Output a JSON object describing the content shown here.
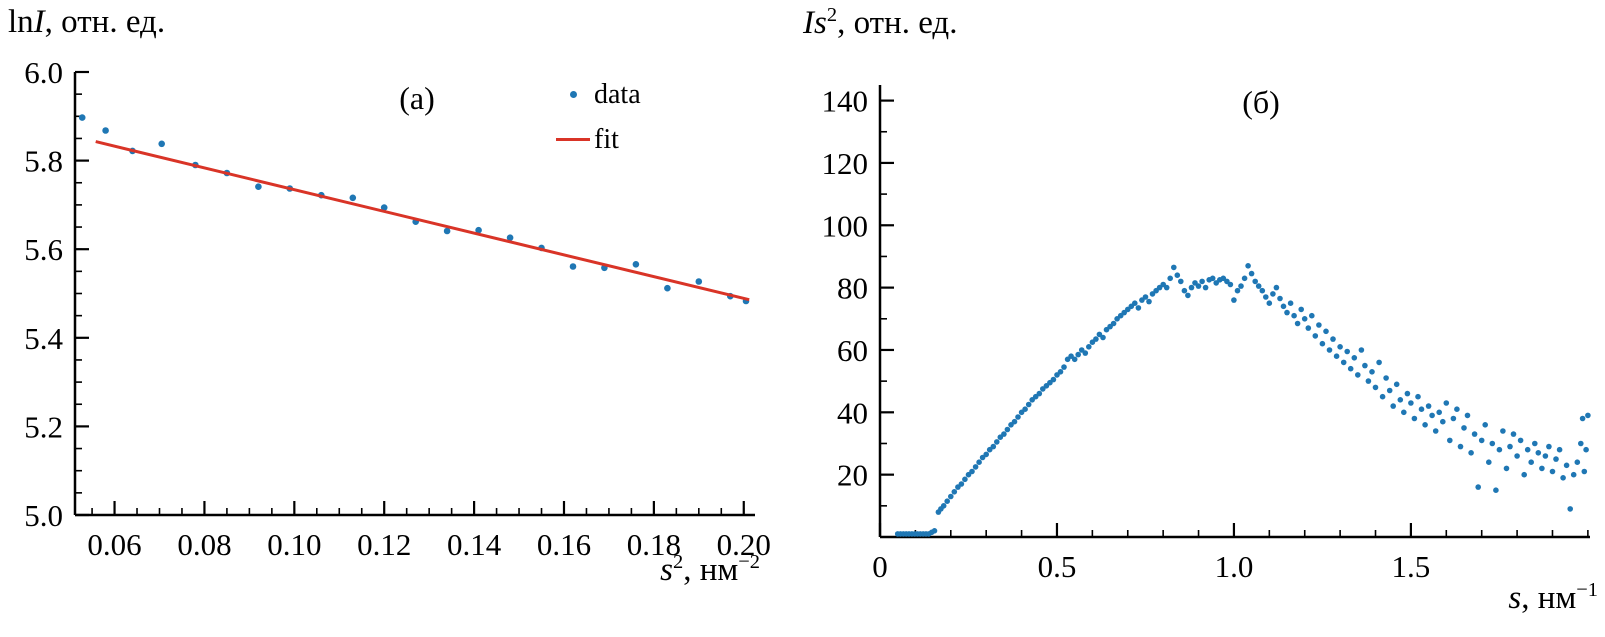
{
  "colors": {
    "data_point": "#1f77b4",
    "fit_line": "#d93427",
    "axis": "#000000"
  },
  "labels": {
    "left_y": {
      "roman": "ln",
      "var": "I",
      "rest": ", отн. ед."
    },
    "left_x": {
      "var": "s",
      "sup": "2",
      "mid": ", нм",
      "exp": "−2"
    },
    "right_y": {
      "var": "Is",
      "sup": "2",
      "rest": ", отн. ед."
    },
    "right_x": {
      "var": "s",
      "mid": ",  нм",
      "exp": "−1"
    }
  },
  "chart_data": [
    {
      "type": "scatter",
      "panel_label": "(а)",
      "ylabel": "lnI, отн. ед.",
      "xlabel": "s², нм−2",
      "xlim": [
        0.0512,
        0.2025
      ],
      "ylim": [
        5.0,
        6.0
      ],
      "xticks": [
        0.06,
        0.08,
        0.1,
        0.12,
        0.14,
        0.16,
        0.18,
        0.2
      ],
      "xtick_labels": [
        "0.06",
        "0.08",
        "0.10",
        "0.12",
        "0.14",
        "0.16",
        "0.18",
        "0.20"
      ],
      "x_minor_step": 0.005,
      "yticks": [
        5.0,
        5.2,
        5.4,
        5.6,
        5.8,
        6.0
      ],
      "ytick_labels": [
        "5.0",
        "5.2",
        "5.4",
        "5.6",
        "5.8",
        "6.0"
      ],
      "y_minor_step": 0.05,
      "grid": false,
      "legend": [
        "data",
        "fit"
      ],
      "legend_position": "upper right",
      "series": [
        {
          "name": "data",
          "type": "scatter",
          "points": [
            [
              0.0528,
              5.897
            ],
            [
              0.058,
              5.868
            ],
            [
              0.064,
              5.822
            ],
            [
              0.0705,
              5.838
            ],
            [
              0.078,
              5.79
            ],
            [
              0.085,
              5.772
            ],
            [
              0.092,
              5.741
            ],
            [
              0.099,
              5.737
            ],
            [
              0.106,
              5.722
            ],
            [
              0.113,
              5.716
            ],
            [
              0.12,
              5.694
            ],
            [
              0.127,
              5.662
            ],
            [
              0.134,
              5.641
            ],
            [
              0.141,
              5.643
            ],
            [
              0.148,
              5.626
            ],
            [
              0.155,
              5.603
            ],
            [
              0.162,
              5.561
            ],
            [
              0.169,
              5.558
            ],
            [
              0.176,
              5.566
            ],
            [
              0.183,
              5.512
            ],
            [
              0.19,
              5.527
            ],
            [
              0.197,
              5.494
            ],
            [
              0.2005,
              5.483
            ]
          ]
        },
        {
          "name": "fit",
          "type": "line",
          "points": [
            [
              0.0558,
              5.843
            ],
            [
              0.2012,
              5.486
            ]
          ]
        }
      ]
    },
    {
      "type": "scatter",
      "panel_label": "(б)",
      "ylabel": "Is², отн. ед.",
      "xlabel": "s, нм−1",
      "xlim": [
        0,
        2.006
      ],
      "ylim": [
        0,
        145
      ],
      "xticks": [
        0,
        0.5,
        1.0,
        1.5
      ],
      "xtick_labels": [
        "0",
        "0.5",
        "1.0",
        "1.5"
      ],
      "x_minor_step": 0.1,
      "yticks": [
        20,
        40,
        60,
        80,
        100,
        120,
        140
      ],
      "ytick_labels": [
        "20",
        "40",
        "60",
        "80",
        "100",
        "120",
        "140"
      ],
      "y_minor_step": 10,
      "grid": false,
      "legend": [],
      "series": [
        {
          "name": "data",
          "type": "scatter",
          "points": [
            [
              0.05,
              1
            ],
            [
              0.058,
              1
            ],
            [
              0.066,
              1
            ],
            [
              0.074,
              1
            ],
            [
              0.082,
              1
            ],
            [
              0.09,
              1
            ],
            [
              0.098,
              1
            ],
            [
              0.106,
              1
            ],
            [
              0.114,
              1
            ],
            [
              0.122,
              1
            ],
            [
              0.13,
              1
            ],
            [
              0.138,
              1
            ],
            [
              0.146,
              1.5
            ],
            [
              0.154,
              2
            ],
            [
              0.165,
              8
            ],
            [
              0.172,
              9
            ],
            [
              0.18,
              10
            ],
            [
              0.19,
              11.5
            ],
            [
              0.2,
              13
            ],
            [
              0.21,
              14.5
            ],
            [
              0.22,
              16
            ],
            [
              0.23,
              17
            ],
            [
              0.24,
              18.5
            ],
            [
              0.25,
              20
            ],
            [
              0.26,
              21
            ],
            [
              0.27,
              22.5
            ],
            [
              0.28,
              24
            ],
            [
              0.29,
              25.5
            ],
            [
              0.3,
              26.5
            ],
            [
              0.31,
              28
            ],
            [
              0.32,
              29
            ],
            [
              0.33,
              30.5
            ],
            [
              0.34,
              32
            ],
            [
              0.35,
              33
            ],
            [
              0.36,
              34.5
            ],
            [
              0.37,
              36
            ],
            [
              0.38,
              37
            ],
            [
              0.39,
              38.5
            ],
            [
              0.4,
              40
            ],
            [
              0.41,
              41
            ],
            [
              0.42,
              42.5
            ],
            [
              0.43,
              44
            ],
            [
              0.44,
              45
            ],
            [
              0.45,
              46
            ],
            [
              0.46,
              47.5
            ],
            [
              0.47,
              48.5
            ],
            [
              0.48,
              49.5
            ],
            [
              0.49,
              50.5
            ],
            [
              0.5,
              52
            ],
            [
              0.51,
              53
            ],
            [
              0.52,
              54.5
            ],
            [
              0.53,
              57
            ],
            [
              0.54,
              58
            ],
            [
              0.55,
              57
            ],
            [
              0.56,
              58.5
            ],
            [
              0.57,
              60
            ],
            [
              0.58,
              59
            ],
            [
              0.59,
              61
            ],
            [
              0.6,
              62.5
            ],
            [
              0.61,
              63.5
            ],
            [
              0.62,
              65
            ],
            [
              0.63,
              64
            ],
            [
              0.64,
              66.5
            ],
            [
              0.65,
              67.5
            ],
            [
              0.66,
              68.5
            ],
            [
              0.67,
              70
            ],
            [
              0.68,
              71
            ],
            [
              0.69,
              72
            ],
            [
              0.7,
              73
            ],
            [
              0.71,
              74
            ],
            [
              0.72,
              75
            ],
            [
              0.73,
              73.5
            ],
            [
              0.74,
              76
            ],
            [
              0.75,
              77
            ],
            [
              0.76,
              75.5
            ],
            [
              0.77,
              78
            ],
            [
              0.78,
              79
            ],
            [
              0.79,
              80
            ],
            [
              0.8,
              81
            ],
            [
              0.81,
              80
            ],
            [
              0.82,
              83
            ],
            [
              0.83,
              86.5
            ],
            [
              0.84,
              84
            ],
            [
              0.85,
              82
            ],
            [
              0.86,
              79
            ],
            [
              0.87,
              77.5
            ],
            [
              0.88,
              80
            ],
            [
              0.89,
              81.5
            ],
            [
              0.9,
              80.5
            ],
            [
              0.91,
              82
            ],
            [
              0.92,
              80
            ],
            [
              0.93,
              82.5
            ],
            [
              0.94,
              83
            ],
            [
              0.95,
              81.5
            ],
            [
              0.96,
              82.5
            ],
            [
              0.97,
              83
            ],
            [
              0.98,
              82
            ],
            [
              0.99,
              81
            ],
            [
              1.0,
              76
            ],
            [
              1.01,
              79
            ],
            [
              1.02,
              80.5
            ],
            [
              1.03,
              83
            ],
            [
              1.04,
              87
            ],
            [
              1.05,
              84.5
            ],
            [
              1.06,
              82
            ],
            [
              1.07,
              80.5
            ],
            [
              1.08,
              79
            ],
            [
              1.09,
              77
            ],
            [
              1.1,
              75
            ],
            [
              1.11,
              78
            ],
            [
              1.12,
              80
            ],
            [
              1.13,
              76.5
            ],
            [
              1.14,
              74
            ],
            [
              1.15,
              72
            ],
            [
              1.16,
              75
            ],
            [
              1.17,
              71
            ],
            [
              1.18,
              68.5
            ],
            [
              1.19,
              73
            ],
            [
              1.2,
              70
            ],
            [
              1.21,
              67
            ],
            [
              1.22,
              71
            ],
            [
              1.23,
              64.5
            ],
            [
              1.24,
              68
            ],
            [
              1.25,
              62
            ],
            [
              1.26,
              66
            ],
            [
              1.27,
              60
            ],
            [
              1.28,
              63.5
            ],
            [
              1.29,
              58
            ],
            [
              1.3,
              61
            ],
            [
              1.31,
              56
            ],
            [
              1.32,
              59.5
            ],
            [
              1.33,
              54
            ],
            [
              1.34,
              57.5
            ],
            [
              1.35,
              52
            ],
            [
              1.36,
              60
            ],
            [
              1.37,
              55
            ],
            [
              1.38,
              50
            ],
            [
              1.39,
              53
            ],
            [
              1.4,
              48
            ],
            [
              1.41,
              56
            ],
            [
              1.42,
              45
            ],
            [
              1.43,
              51
            ],
            [
              1.44,
              47
            ],
            [
              1.45,
              42
            ],
            [
              1.46,
              49
            ],
            [
              1.47,
              44
            ],
            [
              1.48,
              40
            ],
            [
              1.49,
              46
            ],
            [
              1.5,
              43
            ],
            [
              1.51,
              38
            ],
            [
              1.52,
              45
            ],
            [
              1.53,
              41
            ],
            [
              1.54,
              36
            ],
            [
              1.55,
              42
            ],
            [
              1.56,
              39
            ],
            [
              1.57,
              34
            ],
            [
              1.58,
              40
            ],
            [
              1.59,
              37
            ],
            [
              1.6,
              43
            ],
            [
              1.61,
              31
            ],
            [
              1.62,
              38
            ],
            [
              1.63,
              41
            ],
            [
              1.64,
              29
            ],
            [
              1.65,
              35
            ],
            [
              1.66,
              39
            ],
            [
              1.67,
              27
            ],
            [
              1.68,
              33
            ],
            [
              1.69,
              16
            ],
            [
              1.7,
              31
            ],
            [
              1.71,
              36
            ],
            [
              1.72,
              24
            ],
            [
              1.73,
              30
            ],
            [
              1.74,
              15
            ],
            [
              1.75,
              28
            ],
            [
              1.76,
              34
            ],
            [
              1.77,
              22
            ],
            [
              1.78,
              29
            ],
            [
              1.79,
              33
            ],
            [
              1.8,
              26
            ],
            [
              1.81,
              31
            ],
            [
              1.82,
              20
            ],
            [
              1.83,
              28
            ],
            [
              1.84,
              24
            ],
            [
              1.85,
              30
            ],
            [
              1.86,
              27
            ],
            [
              1.87,
              22
            ],
            [
              1.88,
              26
            ],
            [
              1.89,
              29
            ],
            [
              1.9,
              21
            ],
            [
              1.91,
              25
            ],
            [
              1.92,
              28
            ],
            [
              1.93,
              19
            ],
            [
              1.94,
              23
            ],
            [
              1.95,
              9
            ],
            [
              1.96,
              20
            ],
            [
              1.97,
              24
            ],
            [
              1.98,
              30
            ],
            [
              1.985,
              38
            ],
            [
              1.99,
              21
            ],
            [
              1.995,
              28
            ],
            [
              2.0,
              39
            ]
          ]
        }
      ]
    }
  ]
}
